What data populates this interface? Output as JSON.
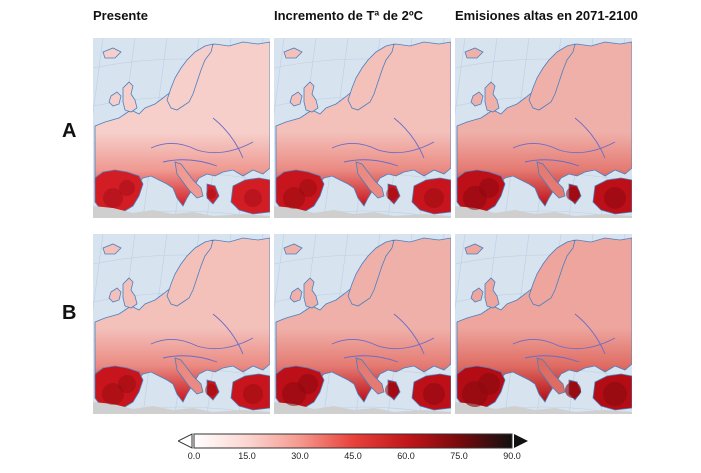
{
  "columns": [
    "Presente",
    "Incremento de Tª de 2ºC",
    "Emisiones altas en 2071-2100"
  ],
  "rows": [
    "A",
    "B"
  ],
  "colorbar": {
    "ticks": [
      "0.0",
      "15.0",
      "30.0",
      "45.0",
      "60.0",
      "75.0",
      "90.0"
    ],
    "range": [
      0,
      90
    ],
    "colors": [
      "#ffffff",
      "#fbd5d0",
      "#f59a8f",
      "#e8423b",
      "#c2161b",
      "#7a0a0c",
      "#111111"
    ]
  },
  "colors": {
    "sea": "#d7e3ef",
    "land_outline": "#4a7fc0",
    "north_land": "#f5c9c3",
    "south_land": "#d11d24",
    "ice": "#cfcfcf"
  }
}
